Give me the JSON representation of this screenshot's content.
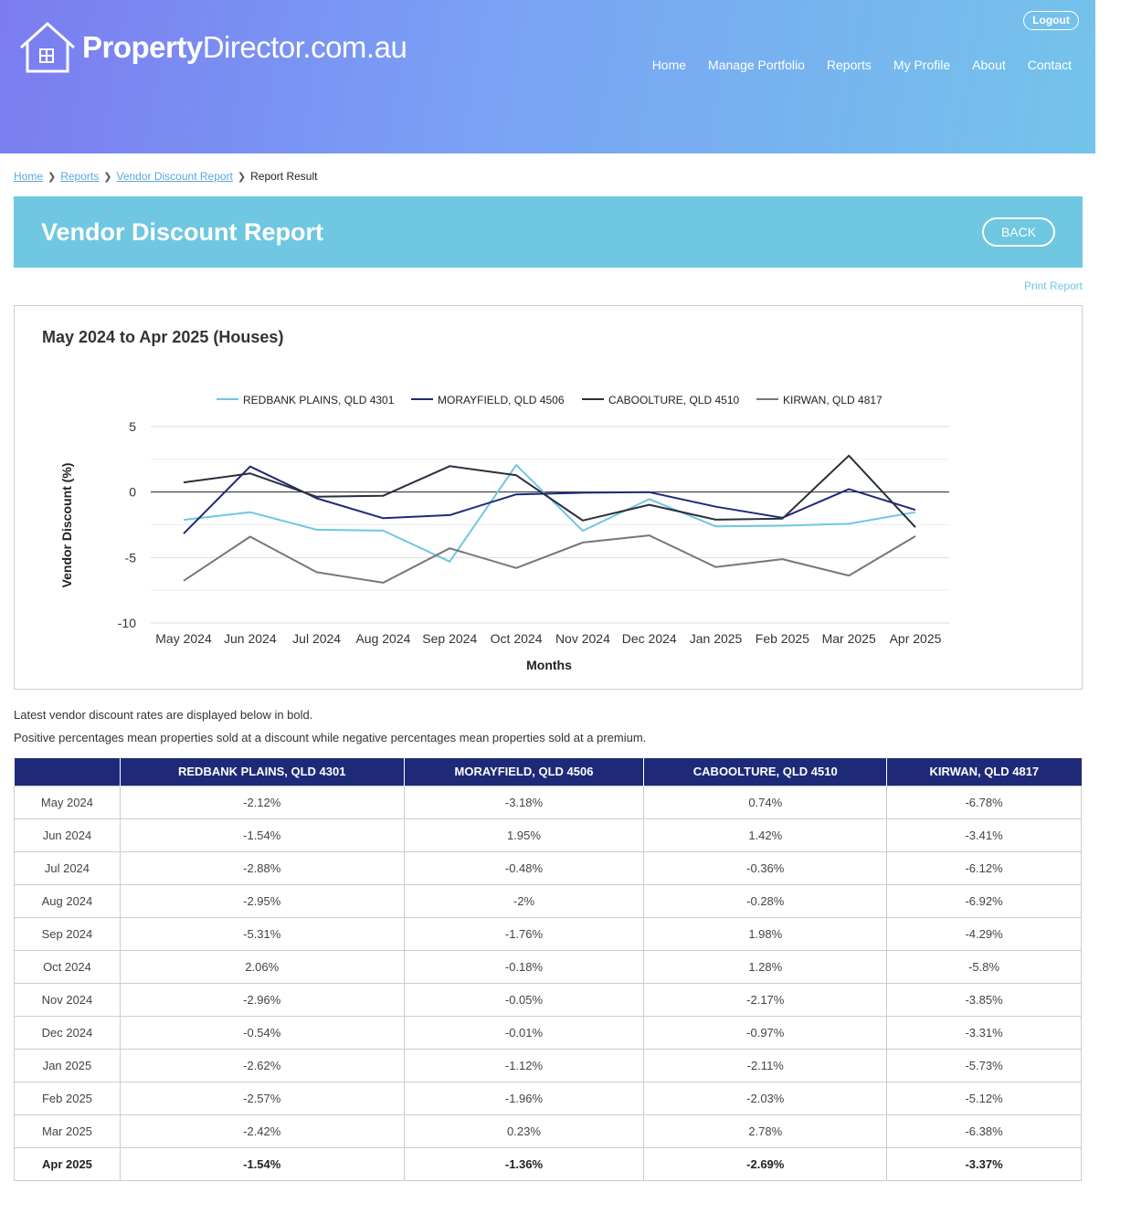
{
  "header": {
    "logo_bold": "Property",
    "logo_rest": "Director.com.au",
    "logout_label": "Logout",
    "nav": [
      "Home",
      "Manage Portfolio",
      "Reports",
      "My Profile",
      "About",
      "Contact"
    ]
  },
  "breadcrumb": {
    "home": "Home",
    "reports": "Reports",
    "vendor": "Vendor Discount Report",
    "current": "Report Result"
  },
  "banner": {
    "title": "Vendor Discount Report",
    "back_label": "BACK"
  },
  "print_label": "Print Report",
  "chart_data": {
    "type": "line",
    "title": "May 2024 to Apr 2025 (Houses)",
    "xlabel": "Months",
    "ylabel": "Vendor Discount (%)",
    "ylim": [
      -10,
      5
    ],
    "yticks": [
      5,
      0,
      -5,
      -10
    ],
    "legend_position": "top",
    "categories": [
      "May 2024",
      "Jun 2024",
      "Jul 2024",
      "Aug 2024",
      "Sep 2024",
      "Oct 2024",
      "Nov 2024",
      "Dec 2024",
      "Jan 2025",
      "Feb 2025",
      "Mar 2025",
      "Apr 2025"
    ],
    "series": [
      {
        "name": "REDBANK PLAINS, QLD 4301",
        "color": "#6fc7e1",
        "values": [
          -2.12,
          -1.54,
          -2.88,
          -2.95,
          -5.31,
          2.06,
          -2.96,
          -0.54,
          -2.62,
          -2.57,
          -2.42,
          -1.54
        ]
      },
      {
        "name": "MORAYFIELD, QLD 4506",
        "color": "#1e2a78",
        "values": [
          -3.18,
          1.95,
          -0.48,
          -2,
          -1.76,
          -0.18,
          -0.05,
          -0.01,
          -1.12,
          -1.96,
          0.23,
          -1.36
        ]
      },
      {
        "name": "CABOOLTURE, QLD 4510",
        "color": "#2b2f3d",
        "values": [
          0.74,
          1.42,
          -0.36,
          -0.28,
          1.98,
          1.28,
          -2.17,
          -0.97,
          -2.11,
          -2.03,
          2.78,
          -2.69
        ]
      },
      {
        "name": "KIRWAN, QLD 4817",
        "color": "#777777",
        "values": [
          -6.78,
          -3.41,
          -6.12,
          -6.92,
          -4.29,
          -5.8,
          -3.85,
          -3.31,
          -5.73,
          -5.12,
          -6.38,
          -3.37
        ]
      }
    ]
  },
  "notes": {
    "line1": "Latest vendor discount rates are displayed below in bold.",
    "line2": "Positive percentages mean properties sold at a discount while negative percentages mean properties sold at a premium."
  },
  "table": {
    "headers": [
      "",
      "REDBANK PLAINS, QLD 4301",
      "MORAYFIELD, QLD 4506",
      "CABOOLTURE, QLD 4510",
      "KIRWAN, QLD 4817"
    ],
    "rows": [
      [
        "May 2024",
        "-2.12%",
        "-3.18%",
        "0.74%",
        "-6.78%"
      ],
      [
        "Jun 2024",
        "-1.54%",
        "1.95%",
        "1.42%",
        "-3.41%"
      ],
      [
        "Jul 2024",
        "-2.88%",
        "-0.48%",
        "-0.36%",
        "-6.12%"
      ],
      [
        "Aug 2024",
        "-2.95%",
        "-2%",
        "-0.28%",
        "-6.92%"
      ],
      [
        "Sep 2024",
        "-5.31%",
        "-1.76%",
        "1.98%",
        "-4.29%"
      ],
      [
        "Oct 2024",
        "2.06%",
        "-0.18%",
        "1.28%",
        "-5.8%"
      ],
      [
        "Nov 2024",
        "-2.96%",
        "-0.05%",
        "-2.17%",
        "-3.85%"
      ],
      [
        "Dec 2024",
        "-0.54%",
        "-0.01%",
        "-0.97%",
        "-3.31%"
      ],
      [
        "Jan 2025",
        "-2.62%",
        "-1.12%",
        "-2.11%",
        "-5.73%"
      ],
      [
        "Feb 2025",
        "-2.57%",
        "-1.96%",
        "-2.03%",
        "-5.12%"
      ],
      [
        "Mar 2025",
        "-2.42%",
        "0.23%",
        "2.78%",
        "-6.38%"
      ],
      [
        "Apr 2025",
        "-1.54%",
        "-1.36%",
        "-2.69%",
        "-3.37%"
      ]
    ]
  }
}
